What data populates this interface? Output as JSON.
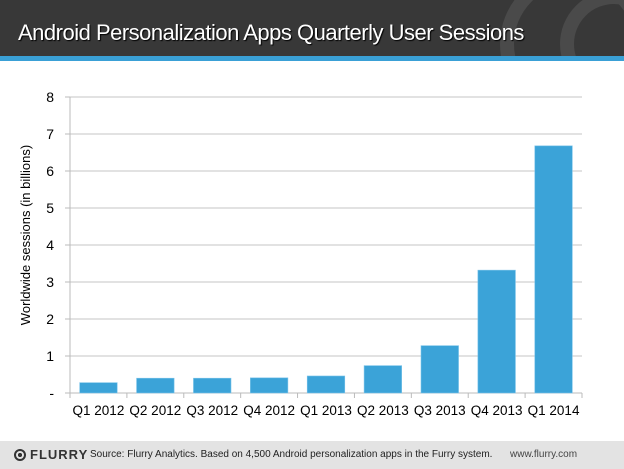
{
  "header": {
    "title": "Android Personalization Apps Quarterly User Sessions"
  },
  "footer": {
    "logo": "FLURRY",
    "source": "Source: Flurry Analytics. Based on 4,500 Android personalization apps in the Furry system.",
    "url": "www.flurry.com"
  },
  "colors": {
    "bar": "#3ba3d8",
    "header": "#383838",
    "stripe": "#3aa0d6"
  },
  "chart_data": {
    "type": "bar",
    "title": "Android Personalization Apps Quarterly User Sessions",
    "xlabel": "",
    "ylabel": "Worldwide sessions (in billions)",
    "categories": [
      "Q1 2012",
      "Q2 2012",
      "Q3 2012",
      "Q4 2012",
      "Q1 2013",
      "Q2 2013",
      "Q3 2013",
      "Q4 2013",
      "Q1 2014"
    ],
    "values": [
      0.28,
      0.4,
      0.4,
      0.41,
      0.46,
      0.74,
      1.28,
      3.32,
      6.68
    ],
    "ylim": [
      0,
      8
    ],
    "yticks": [
      "-",
      "1",
      "2",
      "3",
      "4",
      "5",
      "6",
      "7",
      "8"
    ],
    "grid": true,
    "legend": "none"
  }
}
